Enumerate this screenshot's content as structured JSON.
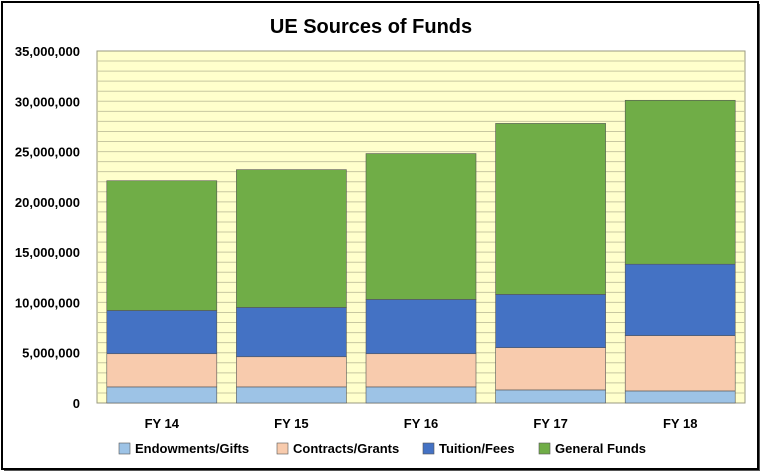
{
  "chart_data": {
    "type": "bar",
    "stacked": true,
    "title": "UE Sources of Funds",
    "xlabel": "",
    "ylabel": "",
    "categories": [
      "FY 14",
      "FY 15",
      "FY 16",
      "FY 17",
      "FY 18"
    ],
    "series": [
      {
        "name": "Endowments/Gifts",
        "color": "#9dc3e6",
        "values": [
          1600000,
          1600000,
          1600000,
          1300000,
          1200000
        ]
      },
      {
        "name": "Contracts/Grants",
        "color": "#f8cbad",
        "values": [
          3300000,
          3000000,
          3300000,
          4200000,
          5500000
        ]
      },
      {
        "name": "Tuition/Fees",
        "color": "#4472c4",
        "values": [
          4300000,
          4900000,
          5400000,
          5300000,
          7100000
        ]
      },
      {
        "name": "General Funds",
        "color": "#70ad47",
        "values": [
          12900000,
          13700000,
          14500000,
          17000000,
          16300000
        ]
      }
    ],
    "yticks": [
      "0",
      "5,000,000",
      "10,000,000",
      "15,000,000",
      "20,000,000",
      "25,000,000",
      "30,000,000",
      "35,000,000"
    ],
    "ylim": [
      0,
      35000000
    ],
    "grid": true,
    "plot_background": "#ffffcc",
    "legend_position": "bottom"
  }
}
